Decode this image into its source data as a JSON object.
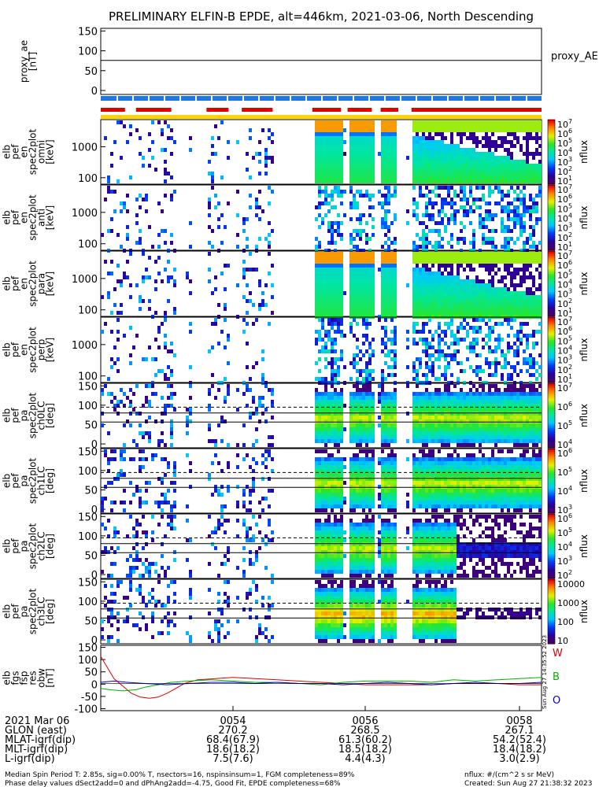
{
  "title": "PRELIMINARY ELFIN-B EPDE, alt=446km, 2021-03-06, North Descending",
  "chart_data": [
    {
      "type": "line",
      "name": "proxy_ae",
      "ylabel_lines": [
        "proxy_ae",
        "[nT]"
      ],
      "side_label": "proxy_AE",
      "yticks": [
        "150",
        "100",
        "50",
        "0"
      ],
      "ylim": [
        -10,
        155
      ],
      "series": [
        {
          "name": "proxy_AE",
          "x": [
            0,
            0.5,
            1
          ],
          "values": [
            75,
            75,
            75
          ],
          "color": "#000000"
        }
      ]
    },
    {
      "type": "heatmap",
      "name": "elb_pef_en_spec2plot_omni",
      "ylabel_lines": [
        "elb",
        "pef",
        "en",
        "spec2plot",
        "omni",
        "[keV]"
      ],
      "yticks": [
        "1000",
        "100"
      ],
      "colorbar": {
        "label": "nflux",
        "ticks": [
          "10^7",
          "10^6",
          "10^5",
          "10^4",
          "10^3",
          "10^2",
          "10^1"
        ]
      }
    },
    {
      "type": "heatmap",
      "name": "elb_pef_en_spec2plot_anti",
      "ylabel_lines": [
        "elb",
        "pef",
        "en",
        "spec2plot",
        "anti",
        "[keV]"
      ],
      "yticks": [
        "1000",
        "100"
      ],
      "colorbar": {
        "label": "nflux",
        "ticks": [
          "10^7",
          "10^6",
          "10^5",
          "10^4",
          "10^3",
          "10^2",
          "10^1"
        ]
      }
    },
    {
      "type": "heatmap",
      "name": "elb_pef_en_spec2plot_para",
      "ylabel_lines": [
        "elb",
        "pef",
        "en",
        "spec2plot",
        "para",
        "[keV]"
      ],
      "yticks": [
        "1000",
        "100"
      ],
      "colorbar": {
        "label": "nflux",
        "ticks": [
          "10^7",
          "10^6",
          "10^5",
          "10^4",
          "10^3",
          "10^2",
          "10^1"
        ]
      }
    },
    {
      "type": "heatmap",
      "name": "elb_pef_en_spec2plot_perp",
      "ylabel_lines": [
        "elb",
        "pef",
        "en",
        "spec2plot",
        "perp",
        "[keV]"
      ],
      "yticks": [
        "1000",
        "100"
      ],
      "colorbar": {
        "label": "nflux",
        "ticks": [
          "10^7",
          "10^6",
          "10^5",
          "10^4",
          "10^3",
          "10^2",
          "10^1"
        ]
      }
    },
    {
      "type": "heatmap",
      "name": "elb_pef_pa_spec2plot_ch0LC",
      "ylabel_lines": [
        "elb",
        "pef",
        "pa",
        "spec2plot",
        "ch0LC",
        "[deg]"
      ],
      "yticks": [
        "150",
        "100",
        "50",
        "0"
      ],
      "colorbar": {
        "label": "nflux",
        "ticks": [
          "10^7",
          "10^6",
          "10^5",
          "10^4"
        ]
      }
    },
    {
      "type": "heatmap",
      "name": "elb_pef_pa_spec2plot_ch1LC",
      "ylabel_lines": [
        "elb",
        "pef",
        "pa",
        "spec2plot",
        "ch1LC",
        "[deg]"
      ],
      "yticks": [
        "150",
        "100",
        "50",
        "0"
      ],
      "colorbar": {
        "label": "nflux",
        "ticks": [
          "10^6",
          "10^5",
          "10^4",
          "10^3"
        ]
      }
    },
    {
      "type": "heatmap",
      "name": "elb_pef_pa_spec2plot_ch2LC",
      "ylabel_lines": [
        "elb",
        "pef",
        "pa",
        "spec2plot",
        "ch2LC",
        "[deg]"
      ],
      "yticks": [
        "150",
        "100",
        "50",
        "0"
      ],
      "colorbar": {
        "label": "nflux",
        "ticks": [
          "10^6",
          "10^5",
          "10^4",
          "10^3",
          "10^2"
        ]
      }
    },
    {
      "type": "heatmap",
      "name": "elb_pef_pa_spec2plot_ch3LC",
      "ylabel_lines": [
        "elb",
        "pef",
        "pa",
        "spec2plot",
        "ch3LC",
        "[deg]"
      ],
      "yticks": [
        "150",
        "100",
        "50",
        "0"
      ],
      "colorbar": {
        "label": "nflux",
        "ticks": [
          "10000",
          "1000",
          "100",
          "10"
        ]
      }
    },
    {
      "type": "line",
      "name": "elb_fgs_fsp_res_obw",
      "ylabel_lines": [
        "elb",
        "fgs",
        "fsp",
        "res",
        "obw",
        "[nT]"
      ],
      "yticks": [
        "150",
        "100",
        "50",
        "0",
        "-50",
        "-100"
      ],
      "ylim": [
        -110,
        155
      ],
      "legend": [
        {
          "label": "W",
          "color": "#e00000"
        },
        {
          "label": "B",
          "color": "#00b000"
        },
        {
          "label": "O",
          "color": "#0000d0"
        }
      ],
      "series": [
        {
          "name": "W",
          "color": "#e00000",
          "x": [
            0,
            0.01,
            0.02,
            0.03,
            0.05,
            0.07,
            0.09,
            0.11,
            0.13,
            0.15,
            0.17,
            0.19,
            0.22,
            0.26,
            0.3,
            0.35,
            0.4,
            0.45,
            0.5,
            0.55,
            0.6,
            0.65,
            0.7,
            0.75,
            0.8,
            0.85,
            0.9,
            0.95,
            1
          ],
          "values": [
            110,
            80,
            50,
            20,
            -10,
            -40,
            -55,
            -60,
            -55,
            -40,
            -20,
            0,
            15,
            20,
            25,
            20,
            15,
            10,
            5,
            0,
            -5,
            -5,
            -5,
            -5,
            0,
            0,
            0,
            -5,
            -5
          ]
        },
        {
          "name": "B",
          "color": "#00b000",
          "x": [
            0,
            0.02,
            0.05,
            0.08,
            0.1,
            0.13,
            0.16,
            0.2,
            0.25,
            0.3,
            0.35,
            0.4,
            0.45,
            0.5,
            0.55,
            0.6,
            0.65,
            0.7,
            0.75,
            0.8,
            0.85,
            0.9,
            0.95,
            1
          ],
          "values": [
            -20,
            -25,
            -30,
            -25,
            -15,
            -5,
            5,
            10,
            15,
            10,
            5,
            5,
            0,
            -5,
            5,
            10,
            10,
            10,
            5,
            15,
            10,
            15,
            20,
            25
          ]
        },
        {
          "name": "O",
          "color": "#0000d0",
          "x": [
            0,
            0.03,
            0.06,
            0.1,
            0.15,
            0.2,
            0.25,
            0.3,
            0.35,
            0.4,
            0.45,
            0.5,
            0.55,
            0.6,
            0.65,
            0.7,
            0.75,
            0.8,
            0.85,
            0.9,
            0.95,
            1
          ],
          "values": [
            5,
            10,
            5,
            0,
            -5,
            0,
            5,
            5,
            0,
            5,
            0,
            0,
            -5,
            0,
            5,
            0,
            -5,
            0,
            5,
            0,
            0,
            5
          ]
        }
      ]
    }
  ],
  "time_axis": {
    "date_label": "2021 Mar 06",
    "ticks": [
      {
        "label": "0054",
        "frac": 0.3
      },
      {
        "label": "0056",
        "frac": 0.6
      },
      {
        "label": "0058",
        "frac": 0.95
      }
    ]
  },
  "ephemeris": [
    {
      "label": "GLON (east)",
      "values": [
        "270.2",
        "268.5",
        "267.1"
      ]
    },
    {
      "label": "MLAT-igrf(dip)",
      "values": [
        "68.4(67.9)",
        "61.3(60.2)",
        "54.2(52.4)"
      ]
    },
    {
      "label": "MLT-igrf(dip)",
      "values": [
        "18.6(18.2)",
        "18.5(18.2)",
        "18.4(18.2)"
      ]
    },
    {
      "label": "L-igrf(dip)",
      "values": [
        "7.5(7.6)",
        "4.4(4.3)",
        "3.0(2.9)"
      ]
    }
  ],
  "footer": {
    "line1": "Median Spin Period T: 2.85s, sig=0.00% T, nsectors=16, nspinsinsum=1, FGM completeness=89%",
    "line2": "Phase delay values dSect2add=0 and dPhAng2add=-4.75, Good Fit, EPDE completeness=68%",
    "units": "nflux: #/(cm^2 s sr MeV)",
    "created": "Created: Sun Aug 27 21:38:32 2023",
    "side_stamp": "Sun Aug 27 14:35:52 2023"
  },
  "colors": {
    "blue_bar": "#1e78e6",
    "red_bar": "#e00000",
    "yellow_bar": "#ffd400"
  }
}
